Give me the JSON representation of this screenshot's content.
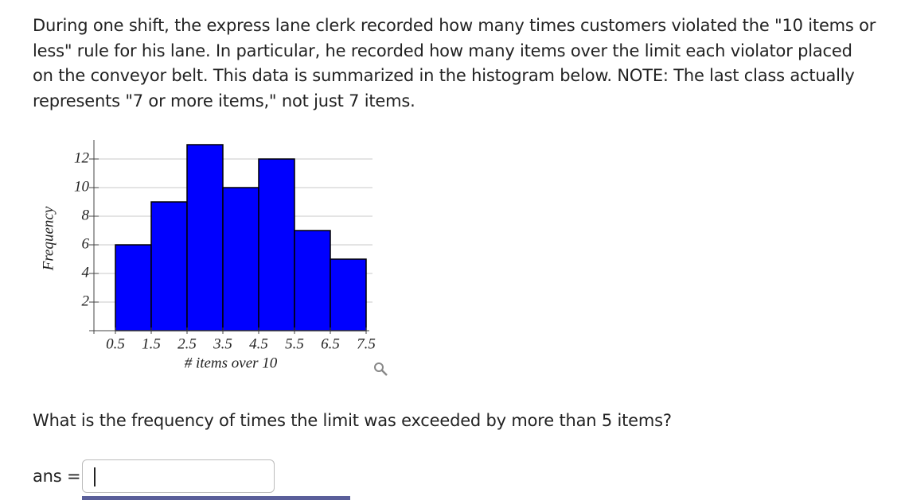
{
  "question": "During one shift, the express lane clerk recorded how many times customers violated the \"10 items or less\" rule for his lane. In particular, he recorded how many items over the limit each violator placed on the conveyor belt. This data is summarized in the histogram below. NOTE: The last class actually represents \"7 or more items,\" not just 7 items.",
  "chart_data": {
    "type": "histogram",
    "bins": [
      0.5,
      1.5,
      2.5,
      3.5,
      4.5,
      5.5,
      6.5,
      7.5
    ],
    "counts": [
      6,
      9,
      13,
      10,
      12,
      7,
      5
    ],
    "color": "#0000ff",
    "xlabel": "# items over 10",
    "ylabel": "Frequency",
    "xlim": [
      -0.1,
      7.5
    ],
    "ylim": [
      0,
      13
    ],
    "xticks": [
      0.5,
      1.5,
      2.5,
      3.5,
      4.5,
      5.5,
      6.5,
      7.5
    ],
    "yticks": [
      2,
      4,
      6,
      8,
      10,
      12
    ],
    "grid": true
  },
  "prompt": "What is the frequency of times the limit was exceeded by more than 5 items?",
  "answer_label": "ans ="
}
